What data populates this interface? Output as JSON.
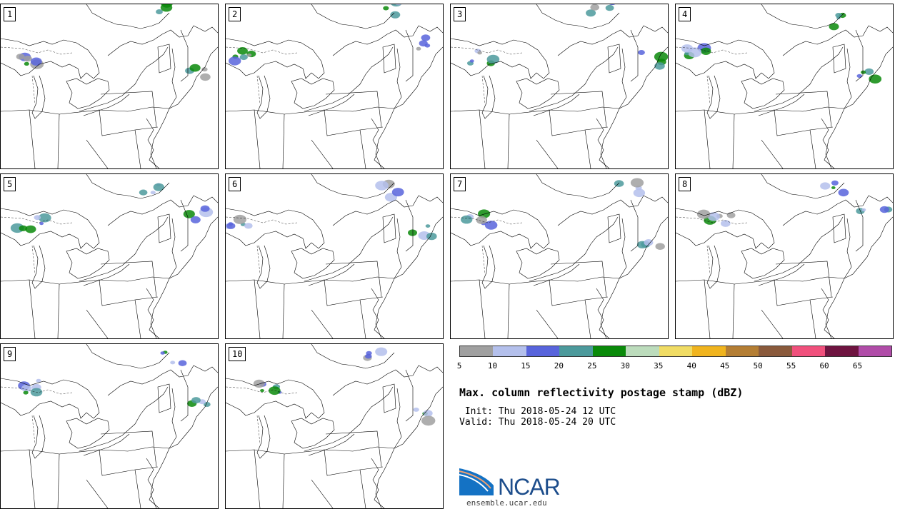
{
  "panels": [
    {
      "num": "1"
    },
    {
      "num": "2"
    },
    {
      "num": "3"
    },
    {
      "num": "4"
    },
    {
      "num": "5"
    },
    {
      "num": "6"
    },
    {
      "num": "7"
    },
    {
      "num": "8"
    },
    {
      "num": "9"
    },
    {
      "num": "10"
    }
  ],
  "colorbar": {
    "colors": [
      "#a0a0a0",
      "#b4c0ec",
      "#5864dc",
      "#4c9a9c",
      "#0a8a0a",
      "#bcdcbc",
      "#f0dc64",
      "#f0b41e",
      "#b47e34",
      "#8a5a3c",
      "#f0507c",
      "#6e1440",
      "#b04ca8"
    ],
    "ticks": [
      "5",
      "10",
      "15",
      "20",
      "25",
      "30",
      "35",
      "40",
      "45",
      "50",
      "55",
      "60",
      "65"
    ]
  },
  "title": "Max. column reflectivity postage stamp (dBZ)",
  "init": " Init: Thu 2018-05-24 12 UTC",
  "valid": "Valid: Thu 2018-05-24 20 UTC",
  "logo": {
    "text": "NCAR",
    "url": "ensemble.ucar.edu"
  }
}
